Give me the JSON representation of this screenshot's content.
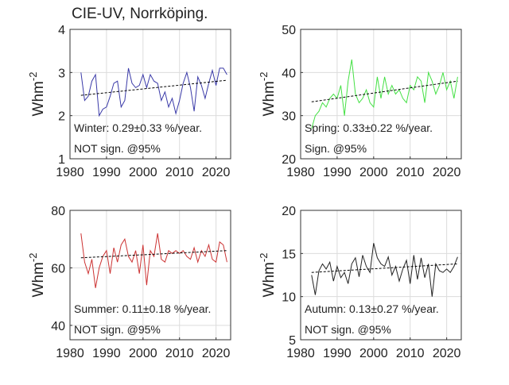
{
  "chart_data": [
    {
      "type": "line",
      "title": "CIE-UV, Norrköping.",
      "ylabel": "Whm",
      "ylabel_superscript": "-2",
      "x": [
        1983,
        1984,
        1985,
        1986,
        1987,
        1988,
        1989,
        1990,
        1991,
        1992,
        1993,
        1994,
        1995,
        1996,
        1997,
        1998,
        1999,
        2000,
        2001,
        2002,
        2003,
        2004,
        2005,
        2006,
        2007,
        2008,
        2009,
        2010,
        2011,
        2012,
        2013,
        2014,
        2015,
        2016,
        2017,
        2018,
        2019,
        2020,
        2021,
        2022,
        2023
      ],
      "values": [
        3.0,
        2.35,
        2.45,
        2.8,
        2.95,
        2.0,
        2.15,
        2.2,
        2.45,
        2.75,
        2.8,
        2.2,
        2.35,
        3.1,
        2.75,
        2.65,
        2.7,
        2.95,
        2.65,
        2.95,
        2.8,
        2.75,
        2.35,
        2.55,
        2.2,
        2.4,
        2.05,
        2.35,
        2.75,
        3.0,
        2.65,
        2.1,
        2.9,
        2.7,
        2.4,
        2.75,
        3.05,
        2.7,
        3.1,
        3.1,
        2.95
      ],
      "color": "#3a3aa8",
      "trend": {
        "x": [
          1983,
          2023
        ],
        "values": [
          2.47,
          2.82
        ],
        "color": "#000000"
      },
      "xlim": [
        1980,
        2024
      ],
      "xticks": [
        1980,
        1990,
        2000,
        2010,
        2020
      ],
      "ylim": [
        1,
        4
      ],
      "yticks": [
        1,
        2,
        3,
        4
      ],
      "grid": true,
      "annotations": [
        "Winter: 0.29±0.33 %/year.",
        "NOT sign. @95%"
      ]
    },
    {
      "type": "line",
      "ylabel": "Whm",
      "ylabel_superscript": "-2",
      "x": [
        1983,
        1984,
        1985,
        1986,
        1987,
        1988,
        1989,
        1990,
        1991,
        1992,
        1993,
        1994,
        1995,
        1996,
        1997,
        1998,
        1999,
        2000,
        2001,
        2002,
        2003,
        2004,
        2005,
        2006,
        2007,
        2008,
        2009,
        2010,
        2011,
        2012,
        2013,
        2014,
        2015,
        2016,
        2017,
        2018,
        2019,
        2020,
        2021,
        2022,
        2023
      ],
      "values": [
        27,
        30,
        31,
        33,
        32,
        34,
        35,
        34,
        37,
        30,
        38,
        43,
        35,
        33,
        34,
        36,
        33,
        32,
        39,
        34,
        39,
        35,
        37,
        35,
        36,
        34,
        33,
        37,
        36,
        39,
        38,
        33,
        40,
        38,
        35,
        37,
        40,
        36,
        38,
        34,
        39
      ],
      "color": "#44e044",
      "trend": {
        "x": [
          1983,
          2023
        ],
        "values": [
          33.2,
          38.0
        ],
        "color": "#000000"
      },
      "xlim": [
        1980,
        2024
      ],
      "xticks": [
        1980,
        1990,
        2000,
        2010,
        2020
      ],
      "ylim": [
        20,
        50
      ],
      "yticks": [
        20,
        30,
        40,
        50
      ],
      "grid": true,
      "annotations": [
        "Spring: 0.33±0.22 %/year.",
        "Sign. @95%"
      ]
    },
    {
      "type": "line",
      "ylabel": "Whm",
      "ylabel_superscript": "-2",
      "x": [
        1983,
        1984,
        1985,
        1986,
        1987,
        1988,
        1989,
        1990,
        1991,
        1992,
        1993,
        1994,
        1995,
        1996,
        1997,
        1998,
        1999,
        2000,
        2001,
        2002,
        2003,
        2004,
        2005,
        2006,
        2007,
        2008,
        2009,
        2010,
        2011,
        2012,
        2013,
        2014,
        2015,
        2016,
        2017,
        2018,
        2019,
        2020,
        2021,
        2022,
        2023
      ],
      "values": [
        72,
        62,
        58,
        63,
        53,
        60,
        64,
        66,
        58,
        67,
        62,
        68,
        70,
        64,
        62,
        66,
        58,
        68,
        54,
        66,
        64,
        72,
        63,
        62,
        66,
        65,
        66,
        65,
        66,
        64,
        63,
        67,
        62,
        66,
        64,
        68,
        63,
        62,
        69,
        68,
        62
      ],
      "color": "#cc3333",
      "trend": {
        "x": [
          1983,
          2023
        ],
        "values": [
          63.5,
          66.0
        ],
        "color": "#000000"
      },
      "xlim": [
        1980,
        2024
      ],
      "xticks": [
        1980,
        1990,
        2000,
        2010,
        2020
      ],
      "ylim": [
        35,
        80
      ],
      "yticks": [
        40,
        60,
        80
      ],
      "grid": true,
      "annotations": [
        "Summer: 0.11±0.18 %/year.",
        "NOT sign. @95%"
      ]
    },
    {
      "type": "line",
      "ylabel": "Whm",
      "ylabel_superscript": "-2",
      "x": [
        1983,
        1984,
        1985,
        1986,
        1987,
        1988,
        1989,
        1990,
        1991,
        1992,
        1993,
        1994,
        1995,
        1996,
        1997,
        1998,
        1999,
        2000,
        2001,
        2002,
        2003,
        2004,
        2005,
        2006,
        2007,
        2008,
        2009,
        2010,
        2011,
        2012,
        2013,
        2014,
        2015,
        2016,
        2017,
        2018,
        2019,
        2020,
        2021,
        2022,
        2023
      ],
      "values": [
        12.5,
        10.2,
        13.0,
        13.8,
        13.2,
        14.0,
        11.8,
        13.5,
        12.2,
        12.8,
        11.5,
        13.8,
        14.5,
        12.3,
        14.8,
        13.5,
        12.8,
        16.2,
        14.5,
        13.8,
        13.5,
        14.6,
        12.5,
        13.5,
        11.8,
        13.2,
        14.2,
        11.5,
        14.8,
        12.0,
        14.5,
        12.2,
        13.8,
        10.0,
        13.8,
        13.0,
        12.8,
        13.2,
        12.8,
        13.5,
        14.6
      ],
      "color": "#222222",
      "trend": {
        "x": [
          1983,
          2023
        ],
        "values": [
          12.8,
          13.8
        ],
        "color": "#000000"
      },
      "xlim": [
        1980,
        2024
      ],
      "xticks": [
        1980,
        1990,
        2000,
        2010,
        2020
      ],
      "ylim": [
        5,
        20
      ],
      "yticks": [
        5,
        10,
        15,
        20
      ],
      "grid": true,
      "annotations": [
        "Autumn: 0.13±0.27 %/year.",
        "NOT sign. @95%"
      ]
    }
  ]
}
